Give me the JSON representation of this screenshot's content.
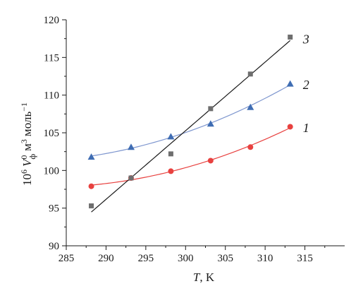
{
  "chart_data": {
    "type": "scatter",
    "xlabel": {
      "italic": "T",
      "rest": ", K"
    },
    "ylabel": {
      "prefix": "10",
      "prefix_sup": "6",
      "symbol": "V",
      "symbol_sup": "0",
      "symbol_sub": "ф",
      "unit": "м",
      "unit_sup": "3",
      "unit2": "моль",
      "unit2_sup": "−1"
    },
    "xlim": [
      285,
      320
    ],
    "ylim": [
      90,
      120
    ],
    "xticks": [
      285,
      290,
      295,
      300,
      305,
      310,
      315
    ],
    "yticks": [
      90,
      95,
      100,
      105,
      110,
      115,
      120
    ],
    "grid": false,
    "series": [
      {
        "label": "1",
        "marker": "circle",
        "color": "#e8413f",
        "fit_color": "#e8413f",
        "x": [
          288.15,
          293.15,
          298.15,
          303.15,
          308.15,
          313.15
        ],
        "y": [
          97.9,
          99.0,
          99.9,
          101.3,
          103.1,
          105.8
        ]
      },
      {
        "label": "2",
        "marker": "triangle",
        "color": "#3f6db3",
        "fit_color": "#7f97cf",
        "x": [
          288.15,
          293.15,
          298.15,
          303.15,
          308.15,
          313.15
        ],
        "y": [
          101.8,
          103.1,
          104.5,
          106.2,
          108.4,
          111.5
        ]
      },
      {
        "label": "3",
        "marker": "square",
        "color": "#6e6e6e",
        "fit_color": "#1a1a1a",
        "x": [
          288.15,
          293.15,
          298.15,
          303.15,
          308.15,
          313.15
        ],
        "y": [
          95.3,
          99.0,
          102.2,
          108.2,
          112.8,
          117.7
        ]
      }
    ]
  }
}
